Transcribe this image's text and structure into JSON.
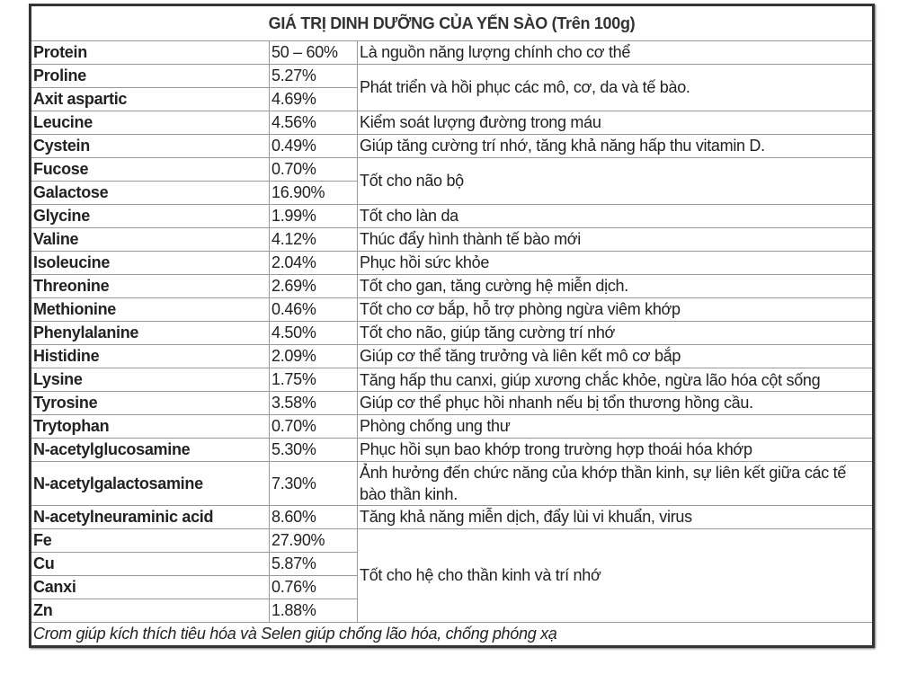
{
  "title": "GIÁ TRỊ DINH DƯỠNG CỦA YẾN SÀO (Trên 100g)",
  "rows": [
    {
      "name": "Protein",
      "value": "50 – 60%",
      "note": "Là nguồn năng lượng chính cho cơ thể",
      "span": 1
    },
    {
      "name": "Proline",
      "value": "5.27%",
      "note": "Phát triển và hồi phục các mô, cơ, da và tế bào.",
      "span": 2
    },
    {
      "name": "Axit aspartic",
      "value": "4.69%"
    },
    {
      "name": "Leucine",
      "value": "4.56%",
      "note": "Kiểm soát lượng đường trong máu",
      "span": 1
    },
    {
      "name": "Cystein",
      "value": "0.49%",
      "note": "Giúp tăng cường trí nhớ, tăng khả năng hấp thu vitamin D.",
      "span": 1
    },
    {
      "name": "Fucose",
      "value": "0.70%",
      "note": "Tốt cho não bộ",
      "span": 2
    },
    {
      "name": "Galactose",
      "value": "16.90%"
    },
    {
      "name": "Glycine",
      "value": "1.99%",
      "note": "Tốt cho làn da",
      "span": 1
    },
    {
      "name": "Valine",
      "value": "4.12%",
      "note": "Thúc đẩy hình thành tế bào mới",
      "span": 1
    },
    {
      "name": "Isoleucine",
      "value": "2.04%",
      "note": "Phục hồi sức khỏe",
      "span": 1
    },
    {
      "name": "Threonine",
      "value": "2.69%",
      "note": "Tốt cho gan, tăng cường hệ miễn dịch.",
      "span": 1
    },
    {
      "name": "Methionine",
      "value": "0.46%",
      "note": "Tốt cho cơ bắp, hỗ trợ phòng ngừa viêm khớp",
      "span": 1
    },
    {
      "name": "Phenylalanine",
      "value": "4.50%",
      "note": "Tốt cho não, giúp tăng cường trí nhớ",
      "span": 1
    },
    {
      "name": "Histidine",
      "value": "2.09%",
      "note": "Giúp cơ thể tăng trưởng và liên kết mô cơ bắp",
      "span": 1
    },
    {
      "name": "Lysine",
      "value": "1.75%",
      "note": "Tăng hấp thu canxi, giúp xương chắc khỏe, ngừa lão hóa cột sống",
      "span": 1,
      "wrap": true
    },
    {
      "name": "Tyrosine",
      "value": "3.58%",
      "note": "Giúp cơ thể phục hồi nhanh nếu bị tổn thương hồng cầu.",
      "span": 1
    },
    {
      "name": "Trytophan",
      "value": "0.70%",
      "note": "Phòng chống ung thư",
      "span": 1
    },
    {
      "name": "N-acetylglucosamine",
      "value": "5.30%",
      "note": "Phục hồi sụn bao khớp trong trường hợp thoái hóa khớp",
      "span": 1
    },
    {
      "name": "N-acetylgalactosamine",
      "value": "7.30%",
      "note": "Ảnh hưởng đến chức năng của khớp thần kinh, sự liên kết giữa các tế bào thần kinh.",
      "span": 1,
      "wrap": true
    },
    {
      "name": "N-acetylneuraminic acid",
      "value": "8.60%",
      "note": "Tăng khả năng miễn dịch, đẩy lùi vi khuẩn, virus",
      "span": 1
    },
    {
      "name": "Fe",
      "value": "27.90%",
      "note": "Tốt cho hệ cho thần kinh và trí nhớ",
      "span": 4
    },
    {
      "name": "Cu",
      "value": "5.87%"
    },
    {
      "name": "Canxi",
      "value": "0.76%"
    },
    {
      "name": "Zn",
      "value": "1.88%"
    }
  ],
  "footer": "Crom giúp kích thích tiêu hóa và Selen giúp chống lão hóa, chống phóng xạ"
}
